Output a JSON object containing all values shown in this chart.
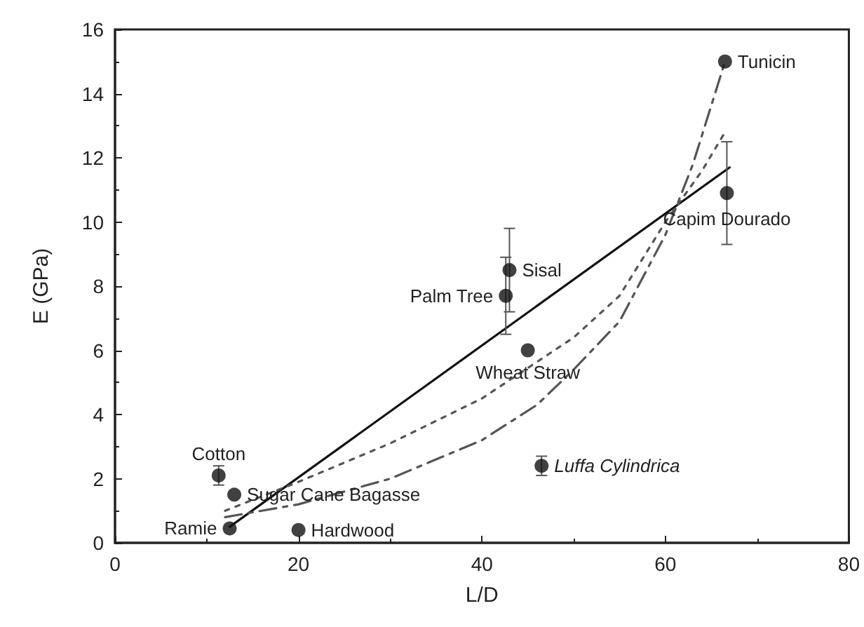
{
  "chart_data": {
    "type": "scatter",
    "xlabel": "L/D",
    "ylabel": "E (GPa)",
    "xlim": [
      0,
      80
    ],
    "xticks": [
      0,
      20,
      40,
      60,
      80
    ],
    "ylim": [
      0,
      16
    ],
    "yticks": [
      0,
      2,
      4,
      6,
      8,
      10,
      12,
      14,
      16
    ],
    "grid": false,
    "series": [
      {
        "color": "#111111",
        "marker": "circle",
        "x": [
          11.3,
          13,
          12.5,
          20,
          42.6,
          43,
          45,
          46.5,
          66.7,
          66.5
        ],
        "values": [
          2.1,
          1.5,
          0.45,
          0.4,
          7.7,
          8.5,
          6.0,
          2.4,
          10.9,
          15.0
        ],
        "errors": [
          0.3,
          null,
          null,
          null,
          1.2,
          1.3,
          null,
          0.3,
          1.6,
          null
        ]
      },
      {
        "type": "line",
        "color": "#111111",
        "marker": "none",
        "line_style": "solid",
        "x": [
          12.5,
          67
        ],
        "values": [
          0.5,
          11.7
        ]
      },
      {
        "type": "line",
        "color": "#555555",
        "marker": "none",
        "line_style": "dotted",
        "x": [
          12,
          20,
          30,
          40,
          50,
          55,
          60,
          64,
          66.5
        ],
        "values": [
          1.0,
          1.9,
          3.1,
          4.5,
          6.4,
          7.7,
          10.0,
          11.6,
          12.8
        ]
      },
      {
        "type": "line",
        "color": "#555555",
        "marker": "none",
        "line_style": "dashed",
        "x": [
          12,
          20,
          30,
          40,
          46,
          50,
          55,
          60,
          63,
          66.5
        ],
        "values": [
          0.8,
          1.2,
          2.0,
          3.2,
          4.3,
          5.4,
          6.9,
          9.6,
          11.8,
          15.0
        ]
      }
    ],
    "annotations": [
      {
        "text": "Cotton",
        "x": 11.3,
        "y": 2.1
      },
      {
        "text": "Sugar Cane Bagasse",
        "x": 13,
        "y": 1.5
      },
      {
        "text": "Ramie",
        "x": 12.5,
        "y": 0.45
      },
      {
        "text": "Hardwood",
        "x": 20,
        "y": 0.4
      },
      {
        "text": "Palm Tree",
        "x": 42.6,
        "y": 7.7
      },
      {
        "text": "Sisal",
        "x": 43,
        "y": 8.5
      },
      {
        "text": "Wheat Straw",
        "x": 45,
        "y": 6.0
      },
      {
        "text": "Luffa Cylindrica",
        "x": 46.5,
        "y": 2.4
      },
      {
        "text": "Capim Dourado",
        "x": 66.7,
        "y": 10.9
      },
      {
        "text": "Tunicin",
        "x": 66.5,
        "y": 15.0
      }
    ]
  }
}
